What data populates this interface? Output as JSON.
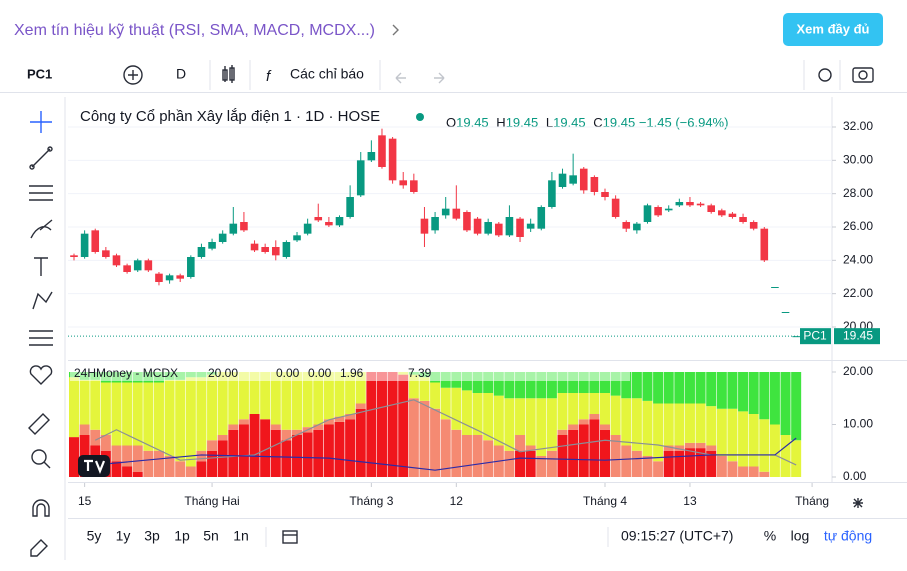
{
  "header": {
    "link": "Xem tín hiệu kỹ thuật (RSI, SMA, MACD, MCDX...)",
    "button": "Xem đầy đủ"
  },
  "toolbar": {
    "symbol": "PC1",
    "interval": "D",
    "indicators": "Các chỉ báo"
  },
  "legend": {
    "title": "Công ty Cổ phần Xây lắp điện 1 · 1D · HOSE",
    "ohlc": [
      {
        "label": "O",
        "value": "19.45"
      },
      {
        "label": "H",
        "value": "19.45"
      },
      {
        "label": "L",
        "value": "19.45"
      },
      {
        "label": "C",
        "value": "19.45"
      }
    ],
    "change": "−1.45 (−6.94%)"
  },
  "indicator_legend": {
    "name": "24HMoney - MCDX",
    "values": [
      "20.00",
      "0.00",
      "0.00",
      "1.96",
      "7.39"
    ]
  },
  "price_tag": {
    "symbol": "PC1",
    "price": 19.45
  },
  "bottom": {
    "ranges": [
      "5y",
      "1y",
      "3p",
      "1p",
      "5n",
      "1n"
    ],
    "time": "09:15:27 (UTC+7)",
    "percent": "%",
    "log": "log",
    "auto": "tự động"
  },
  "chart_data": [
    {
      "type": "candlestick",
      "up_color": "#089981",
      "down_color": "#f23645",
      "grid": true,
      "open": [
        24.3,
        24.2,
        25.8,
        24.6,
        24.3,
        23.7,
        23.4,
        24.0,
        23.2,
        22.8,
        23.1,
        23.0,
        24.2,
        24.7,
        25.1,
        25.6,
        26.3,
        25.0,
        24.8,
        24.8,
        24.2,
        25.2,
        25.6,
        26.6,
        26.3,
        26.1,
        26.6,
        27.9,
        30.0,
        31.5,
        31.3,
        28.8,
        28.8,
        26.5,
        25.8,
        26.7,
        27.1,
        26.9,
        26.5,
        25.6,
        26.2,
        25.5,
        26.5,
        25.9,
        25.9,
        27.2,
        28.4,
        28.6,
        29.5,
        29.0,
        28.1,
        27.7,
        26.3,
        25.8,
        26.3,
        27.2,
        27.0,
        27.3,
        27.5,
        27.4,
        27.3,
        27.0,
        26.8,
        26.6,
        26.3,
        25.9,
        22.4,
        20.9,
        19.45
      ],
      "high": [
        24.4,
        25.8,
        25.9,
        24.8,
        24.4,
        23.8,
        24.1,
        24.1,
        23.3,
        23.2,
        23.2,
        24.3,
        25.0,
        25.3,
        25.8,
        27.2,
        26.9,
        25.2,
        25.0,
        25.2,
        25.2,
        25.7,
        26.5,
        27.4,
        26.6,
        26.7,
        28.5,
        30.5,
        31.2,
        31.9,
        31.4,
        29.3,
        29.2,
        27.2,
        26.9,
        27.8,
        28.5,
        27.0,
        26.6,
        26.5,
        26.3,
        27.3,
        26.6,
        26.5,
        27.3,
        29.3,
        29.5,
        30.4,
        29.6,
        29.1,
        28.3,
        27.9,
        26.4,
        26.3,
        27.4,
        27.3,
        27.3,
        27.7,
        27.8,
        27.5,
        27.4,
        27.1,
        26.9,
        26.8,
        26.4,
        26.0,
        22.4,
        20.9,
        19.45
      ],
      "low": [
        24.0,
        24.1,
        24.4,
        24.1,
        23.6,
        23.2,
        23.3,
        23.3,
        22.5,
        22.6,
        22.7,
        22.9,
        24.1,
        24.6,
        25.0,
        25.5,
        25.7,
        24.5,
        24.4,
        24.0,
        24.1,
        25.1,
        25.5,
        26.3,
        26.0,
        26.0,
        26.5,
        27.8,
        29.9,
        29.5,
        28.6,
        28.3,
        28.0,
        24.8,
        25.6,
        26.5,
        26.4,
        25.7,
        25.5,
        25.5,
        25.4,
        25.4,
        25.1,
        25.7,
        25.8,
        27.1,
        28.3,
        28.5,
        28.0,
        27.9,
        27.6,
        26.5,
        25.7,
        25.6,
        26.2,
        26.6,
        26.9,
        27.2,
        27.2,
        27.2,
        26.8,
        26.6,
        26.5,
        26.2,
        25.8,
        23.9,
        22.4,
        20.9,
        19.45
      ],
      "close": [
        24.2,
        25.6,
        24.5,
        24.2,
        23.7,
        23.3,
        24.0,
        23.4,
        22.7,
        23.1,
        22.9,
        24.2,
        24.8,
        25.1,
        25.6,
        26.2,
        25.8,
        24.6,
        24.5,
        24.3,
        25.1,
        25.5,
        26.2,
        26.4,
        26.1,
        26.6,
        27.8,
        30.0,
        30.5,
        29.6,
        28.8,
        28.5,
        28.1,
        25.6,
        26.6,
        27.1,
        26.5,
        25.8,
        25.6,
        26.3,
        25.5,
        26.6,
        25.4,
        26.2,
        27.2,
        28.8,
        29.2,
        29.1,
        28.2,
        28.1,
        27.8,
        26.6,
        25.9,
        26.2,
        27.3,
        26.7,
        27.1,
        27.5,
        27.3,
        27.3,
        26.9,
        26.7,
        26.6,
        26.3,
        25.9,
        24.0,
        22.4,
        20.9,
        19.45
      ],
      "ylim": [
        18.32,
        33.8
      ],
      "yticks": [
        {
          "value": 20,
          "label": "20.00"
        },
        {
          "value": 22,
          "label": "22.00"
        },
        {
          "value": 24,
          "label": "24.00"
        },
        {
          "value": 26,
          "label": "26.00"
        },
        {
          "value": 28,
          "label": "28.00"
        },
        {
          "value": 30,
          "label": "30.00"
        },
        {
          "value": 32,
          "label": "32.00"
        }
      ],
      "xticks": [
        {
          "value": 1,
          "label": "15"
        },
        {
          "value": 13,
          "label": "Tháng Hai"
        },
        {
          "value": 28,
          "label": "Tháng 3"
        },
        {
          "value": 36,
          "label": "12"
        },
        {
          "value": 50,
          "label": "Tháng 4"
        },
        {
          "value": 58,
          "label": "13"
        },
        {
          "value": 69.5,
          "label": "Tháng"
        }
      ]
    },
    {
      "type": "stacked_bar",
      "ylim": [
        -1,
        21
      ],
      "yticks": [
        {
          "value": 0,
          "label": "0.00"
        },
        {
          "value": 10,
          "label": "10.00"
        },
        {
          "value": 20,
          "label": "20.00"
        }
      ],
      "series": [
        {
          "color": "#f0161c",
          "values": [
            7.6,
            8,
            6,
            5,
            3,
            2,
            1,
            0,
            0,
            0,
            0,
            0,
            3,
            5,
            7,
            9,
            10,
            12,
            11,
            9,
            7,
            8,
            8.5,
            9,
            10,
            10.5,
            11,
            13,
            20,
            20,
            20,
            19.5,
            0,
            0,
            0,
            0,
            0,
            0,
            0,
            0,
            0,
            0,
            5,
            5,
            0,
            0,
            8,
            9,
            10,
            11,
            9,
            0,
            0,
            0,
            0,
            0,
            5,
            5,
            5.5,
            5.5,
            5,
            0,
            0,
            0,
            0,
            0,
            0,
            0,
            0
          ]
        },
        {
          "color": "#f58a72",
          "values": [
            0,
            2,
            3,
            3,
            3,
            4,
            5,
            5,
            5,
            4,
            3,
            2,
            2,
            2,
            1,
            1,
            1,
            0,
            0,
            1,
            2,
            1,
            1,
            1,
            1,
            1,
            1,
            1,
            0,
            0,
            0,
            0,
            15,
            14.5,
            13,
            11,
            9,
            8,
            8,
            7,
            6,
            5,
            3,
            1,
            4,
            5,
            1,
            1,
            1,
            1,
            1,
            8,
            6,
            5,
            4,
            3,
            1,
            1,
            1,
            1,
            1,
            4,
            3,
            2,
            2,
            1,
            0,
            0,
            0
          ]
        },
        {
          "color": "#e4f53c",
          "values": [
            11.4,
            8.5,
            9.5,
            10,
            12,
            12,
            12,
            13,
            13,
            14.5,
            15.5,
            17,
            14,
            12.5,
            12,
            10,
            9,
            8,
            9,
            10,
            11,
            11,
            10.5,
            10,
            9,
            8.5,
            8,
            6,
            0,
            0,
            0,
            0.5,
            4.5,
            4.5,
            5,
            6,
            8,
            8.5,
            8,
            9,
            9.5,
            10,
            7,
            9,
            11,
            10,
            7,
            6,
            5,
            4,
            6,
            7.5,
            9,
            10,
            10.5,
            11,
            8,
            8,
            7.5,
            7.5,
            7.5,
            9,
            10,
            10.5,
            10,
            10,
            10,
            8,
            7
          ]
        },
        {
          "color": "#3fe43f",
          "values": [
            1,
            1.5,
            1.5,
            2,
            2,
            2,
            2,
            2,
            2,
            1.5,
            1.5,
            1,
            1,
            0.5,
            0,
            0,
            0,
            0,
            0,
            0,
            0,
            0,
            0,
            0,
            0,
            0,
            0,
            0,
            0,
            0,
            0,
            0,
            0.5,
            1,
            2,
            3,
            3,
            3.5,
            4,
            4,
            4.5,
            5,
            5,
            5,
            5,
            5,
            4,
            4,
            4,
            4,
            4,
            4.5,
            5,
            5,
            5.5,
            6,
            6,
            6,
            6,
            6,
            6.5,
            7,
            7,
            7.5,
            8,
            9,
            10,
            12,
            13
          ]
        }
      ],
      "lines": [
        {
          "color": "#8a8f98",
          "x": [
            2,
            4,
            10,
            17,
            24,
            32,
            38,
            42,
            50,
            55,
            60,
            66,
            68
          ],
          "values": [
            7,
            9,
            3.2,
            4.2,
            10.9,
            14.7,
            8.9,
            4.8,
            7,
            6.1,
            4.2,
            4.2,
            2.3
          ]
        },
        {
          "color": "#2b2ba8",
          "x": [
            2,
            12,
            24,
            34,
            42,
            50,
            60,
            66,
            68
          ],
          "values": [
            2.3,
            4.2,
            3.6,
            1.3,
            3.6,
            3.2,
            4.2,
            4.2,
            7.4
          ]
        }
      ]
    }
  ]
}
